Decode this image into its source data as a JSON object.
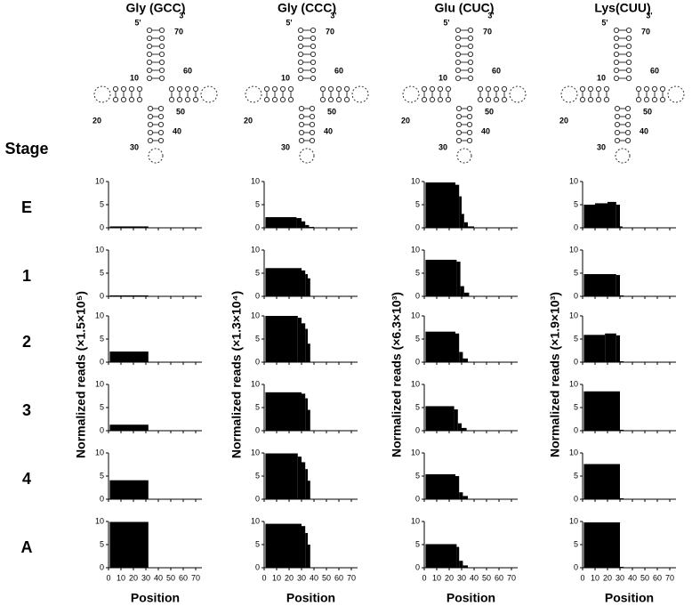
{
  "columns": [
    {
      "title": "Gly (GCC)",
      "y_label": "Normalized reads (×1.5×10⁵)",
      "structure_labels": [
        "5'",
        "3'",
        "70",
        "60",
        "50",
        "40",
        "30",
        "20",
        "10"
      ]
    },
    {
      "title": "Gly (CCC)",
      "y_label": "Normalized reads (×1.3×10⁴)",
      "structure_labels": [
        "5'",
        "3'",
        "70",
        "60",
        "50",
        "40",
        "30",
        "20",
        "10"
      ]
    },
    {
      "title": "Glu (CUC)",
      "y_label": "Normalized reads (×6.3×10³)",
      "structure_labels": [
        "5'",
        "3'",
        "70",
        "60",
        "50",
        "40",
        "30",
        "20",
        "10"
      ]
    },
    {
      "title": "Lys(CUU)",
      "y_label": "Normalized reads (×1.9×10³)",
      "structure_labels": [
        "5'",
        "3'",
        "70",
        "60",
        "50",
        "40",
        "30",
        "20",
        "10"
      ]
    }
  ],
  "row_header": "Stage",
  "rows": [
    "E",
    "1",
    "2",
    "3",
    "4",
    "A"
  ],
  "x_label": "Position",
  "chart_data": [
    {
      "type": "histogram",
      "bins": [
        1,
        32
      ],
      "counts": [
        0.3
      ],
      "color": "#000000",
      "xlim": [
        0,
        75
      ],
      "ylim": [
        0,
        10
      ],
      "xticks": [
        0,
        10,
        20,
        30,
        40,
        50,
        60,
        70
      ],
      "yticks": [
        0,
        5,
        10
      ]
    },
    {
      "type": "histogram",
      "bins": [
        1,
        32
      ],
      "counts": [
        0.2
      ],
      "color": "#000000",
      "xlim": [
        0,
        75
      ],
      "ylim": [
        0,
        10
      ],
      "xticks": [
        0,
        10,
        20,
        30,
        40,
        50,
        60,
        70
      ],
      "yticks": [
        0,
        5,
        10
      ]
    },
    {
      "type": "histogram",
      "bins": [
        1,
        32
      ],
      "counts": [
        2.3
      ],
      "color": "#000000",
      "xlim": [
        0,
        75
      ],
      "ylim": [
        0,
        10
      ],
      "xticks": [
        0,
        10,
        20,
        30,
        40,
        50,
        60,
        70
      ],
      "yticks": [
        0,
        5,
        10
      ]
    },
    {
      "type": "histogram",
      "bins": [
        1,
        32
      ],
      "counts": [
        1.3
      ],
      "color": "#000000",
      "xlim": [
        0,
        75
      ],
      "ylim": [
        0,
        10
      ],
      "xticks": [
        0,
        10,
        20,
        30,
        40,
        50,
        60,
        70
      ],
      "yticks": [
        0,
        5,
        10
      ]
    },
    {
      "type": "histogram",
      "bins": [
        1,
        32
      ],
      "counts": [
        4.1
      ],
      "color": "#000000",
      "xlim": [
        0,
        75
      ],
      "ylim": [
        0,
        10
      ],
      "xticks": [
        0,
        10,
        20,
        30,
        40,
        50,
        60,
        70
      ],
      "yticks": [
        0,
        5,
        10
      ]
    },
    {
      "type": "histogram",
      "bins": [
        1,
        32
      ],
      "counts": [
        9.9
      ],
      "color": "#000000",
      "xlim": [
        0,
        75
      ],
      "ylim": [
        0,
        10
      ],
      "xticks": [
        0,
        10,
        20,
        30,
        40,
        50,
        60,
        70
      ],
      "yticks": [
        0,
        5,
        10
      ]
    },
    {
      "type": "histogram",
      "bins": [
        1,
        26,
        30,
        33,
        36,
        40
      ],
      "counts": [
        2.3,
        2.1,
        1.4,
        0.6,
        0.2
      ],
      "color": "#000000",
      "xlim": [
        0,
        75
      ],
      "ylim": [
        0,
        10
      ],
      "xticks": [
        0,
        10,
        20,
        30,
        40,
        50,
        60,
        70
      ],
      "yticks": [
        0,
        5,
        10
      ]
    },
    {
      "type": "histogram",
      "bins": [
        1,
        30,
        33,
        35,
        37
      ],
      "counts": [
        6.1,
        5.6,
        4.8,
        3.9
      ],
      "color": "#000000",
      "xlim": [
        0,
        75
      ],
      "ylim": [
        0,
        10
      ],
      "xticks": [
        0,
        10,
        20,
        30,
        40,
        50,
        60,
        70
      ],
      "yticks": [
        0,
        5,
        10
      ]
    },
    {
      "type": "histogram",
      "bins": [
        1,
        27,
        30,
        33,
        35,
        37
      ],
      "counts": [
        10,
        9.6,
        8.4,
        7.2,
        4
      ],
      "color": "#000000",
      "xlim": [
        0,
        75
      ],
      "ylim": [
        0,
        10
      ],
      "xticks": [
        0,
        10,
        20,
        30,
        40,
        50,
        60,
        70
      ],
      "yticks": [
        0,
        5,
        10
      ]
    },
    {
      "type": "histogram",
      "bins": [
        1,
        30,
        33,
        35,
        37
      ],
      "counts": [
        8.3,
        8,
        7,
        4.5
      ],
      "color": "#000000",
      "xlim": [
        0,
        75
      ],
      "ylim": [
        0,
        10
      ],
      "xticks": [
        0,
        10,
        20,
        30,
        40,
        50,
        60,
        70
      ],
      "yticks": [
        0,
        5,
        10
      ]
    },
    {
      "type": "histogram",
      "bins": [
        1,
        27,
        30,
        33,
        35,
        37
      ],
      "counts": [
        9.9,
        9.2,
        8,
        6.5,
        4
      ],
      "color": "#000000",
      "xlim": [
        0,
        75
      ],
      "ylim": [
        0,
        10
      ],
      "xticks": [
        0,
        10,
        20,
        30,
        40,
        50,
        60,
        70
      ],
      "yticks": [
        0,
        5,
        10
      ]
    },
    {
      "type": "histogram",
      "bins": [
        1,
        30,
        33,
        35,
        37
      ],
      "counts": [
        9.5,
        9,
        7.5,
        5
      ],
      "color": "#000000",
      "xlim": [
        0,
        75
      ],
      "ylim": [
        0,
        10
      ],
      "xticks": [
        0,
        10,
        20,
        30,
        40,
        50,
        60,
        70
      ],
      "yticks": [
        0,
        5,
        10
      ]
    },
    {
      "type": "histogram",
      "bins": [
        1,
        25,
        28,
        30,
        32,
        35,
        40
      ],
      "counts": [
        9.8,
        9.3,
        6.8,
        3,
        1.2,
        0.3
      ],
      "color": "#000000",
      "xlim": [
        0,
        75
      ],
      "ylim": [
        0,
        10
      ],
      "xticks": [
        0,
        10,
        20,
        30,
        40,
        50,
        60,
        70
      ],
      "yticks": [
        0,
        5,
        10
      ]
    },
    {
      "type": "histogram",
      "bins": [
        1,
        26,
        29,
        32,
        36
      ],
      "counts": [
        7.9,
        7.5,
        2.2,
        0.8
      ],
      "color": "#000000",
      "xlim": [
        0,
        75
      ],
      "ylim": [
        0,
        10
      ],
      "xticks": [
        0,
        10,
        20,
        30,
        40,
        50,
        60,
        70
      ],
      "yticks": [
        0,
        5,
        10
      ]
    },
    {
      "type": "histogram",
      "bins": [
        1,
        25,
        28,
        31,
        35
      ],
      "counts": [
        6.6,
        6.2,
        2.2,
        0.8
      ],
      "color": "#000000",
      "xlim": [
        0,
        75
      ],
      "ylim": [
        0,
        10
      ],
      "xticks": [
        0,
        10,
        20,
        30,
        40,
        50,
        60,
        70
      ],
      "yticks": [
        0,
        5,
        10
      ]
    },
    {
      "type": "histogram",
      "bins": [
        1,
        24,
        27,
        30,
        34
      ],
      "counts": [
        5.3,
        4.6,
        1.6,
        0.6
      ],
      "color": "#000000",
      "xlim": [
        0,
        75
      ],
      "ylim": [
        0,
        10
      ],
      "xticks": [
        0,
        10,
        20,
        30,
        40,
        50,
        60,
        70
      ],
      "yticks": [
        0,
        5,
        10
      ]
    },
    {
      "type": "histogram",
      "bins": [
        1,
        25,
        28,
        31,
        35
      ],
      "counts": [
        5.4,
        5,
        1.5,
        0.7
      ],
      "color": "#000000",
      "xlim": [
        0,
        75
      ],
      "ylim": [
        0,
        10
      ],
      "xticks": [
        0,
        10,
        20,
        30,
        40,
        50,
        60,
        70
      ],
      "yticks": [
        0,
        5,
        10
      ]
    },
    {
      "type": "histogram",
      "bins": [
        1,
        26,
        28,
        31,
        35
      ],
      "counts": [
        5.1,
        4.5,
        1.5,
        0.5
      ],
      "color": "#000000",
      "xlim": [
        0,
        75
      ],
      "ylim": [
        0,
        10
      ],
      "xticks": [
        0,
        10,
        20,
        30,
        40,
        50,
        60,
        70
      ],
      "yticks": [
        0,
        5,
        10
      ]
    },
    {
      "type": "histogram",
      "bins": [
        1,
        10,
        20,
        27,
        30,
        32
      ],
      "counts": [
        5,
        5.3,
        5.6,
        5,
        0.3
      ],
      "color": "#000000",
      "xlim": [
        0,
        75
      ],
      "ylim": [
        0,
        10
      ],
      "xticks": [
        0,
        10,
        20,
        30,
        40,
        50,
        60,
        70
      ],
      "yticks": [
        0,
        5,
        10
      ]
    },
    {
      "type": "histogram",
      "bins": [
        1,
        27,
        30,
        33
      ],
      "counts": [
        4.8,
        4.6,
        0.2
      ],
      "color": "#000000",
      "xlim": [
        0,
        75
      ],
      "ylim": [
        0,
        10
      ],
      "xticks": [
        0,
        10,
        20,
        30,
        40,
        50,
        60,
        70
      ],
      "yticks": [
        0,
        5,
        10
      ]
    },
    {
      "type": "histogram",
      "bins": [
        1,
        18,
        27,
        30,
        33
      ],
      "counts": [
        5.9,
        6.2,
        5.8,
        0.2
      ],
      "color": "#000000",
      "xlim": [
        0,
        75
      ],
      "ylim": [
        0,
        10
      ],
      "xticks": [
        0,
        10,
        20,
        30,
        40,
        50,
        60,
        70
      ],
      "yticks": [
        0,
        5,
        10
      ]
    },
    {
      "type": "histogram",
      "bins": [
        1,
        30,
        33
      ],
      "counts": [
        8.5,
        0.2
      ],
      "color": "#000000",
      "xlim": [
        0,
        75
      ],
      "ylim": [
        0,
        10
      ],
      "xticks": [
        0,
        10,
        20,
        30,
        40,
        50,
        60,
        70
      ],
      "yticks": [
        0,
        5,
        10
      ]
    },
    {
      "type": "histogram",
      "bins": [
        1,
        30,
        33
      ],
      "counts": [
        7.6,
        0.2
      ],
      "color": "#000000",
      "xlim": [
        0,
        75
      ],
      "ylim": [
        0,
        10
      ],
      "xticks": [
        0,
        10,
        20,
        30,
        40,
        50,
        60,
        70
      ],
      "yticks": [
        0,
        5,
        10
      ]
    },
    {
      "type": "histogram",
      "bins": [
        1,
        30,
        33
      ],
      "counts": [
        9.8,
        0.2
      ],
      "color": "#000000",
      "xlim": [
        0,
        75
      ],
      "ylim": [
        0,
        10
      ],
      "xticks": [
        0,
        10,
        20,
        30,
        40,
        50,
        60,
        70
      ],
      "yticks": [
        0,
        5,
        10
      ]
    }
  ]
}
